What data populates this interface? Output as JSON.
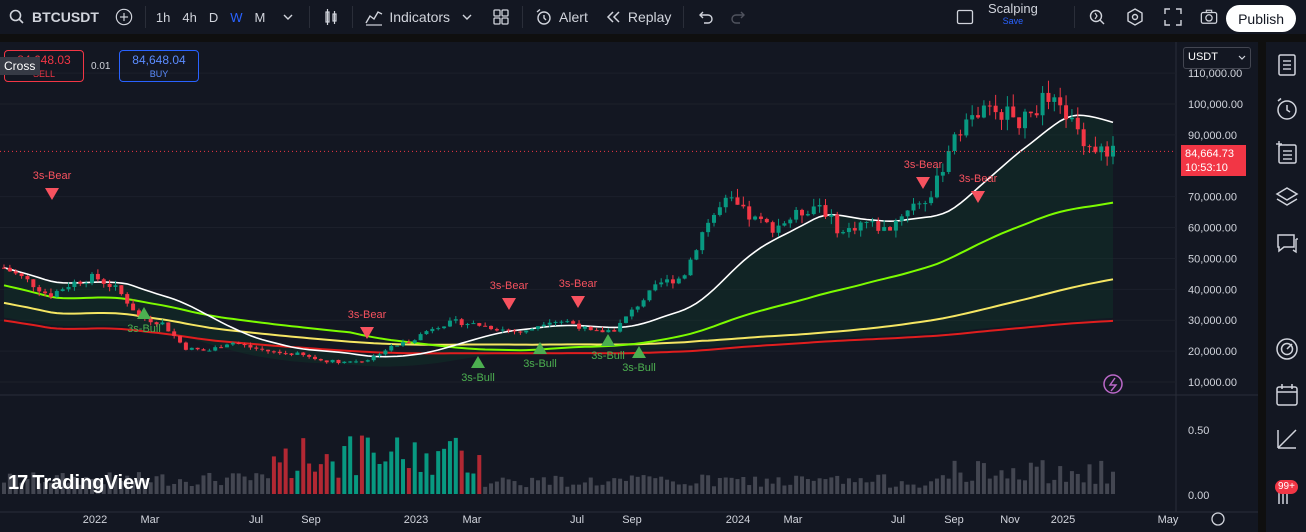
{
  "toolbar": {
    "symbol": "BTCUSDT",
    "timeframes": [
      "1h",
      "4h",
      "D",
      "W",
      "M"
    ],
    "active_timeframe": "W",
    "indicators_label": "Indicators",
    "alert_label": "Alert",
    "replay_label": "Replay",
    "layout_name": "Scalping",
    "layout_status": "Save",
    "publish_label": "Publish"
  },
  "trade_panel": {
    "sell_price": "84,648.03",
    "sell_label": "SELL",
    "buy_price": "84,648.04",
    "buy_label": "BUY",
    "spread": "0.01",
    "cross_label": "Cross"
  },
  "currency_select": "USDT",
  "last_price": "84,664.73",
  "countdown": "10:53:10",
  "logo_text": "TradingView",
  "notifications_badge": "99+",
  "colors": {
    "up": "#089981",
    "down": "#f23645",
    "ma_white": "#ffffff",
    "ma_green": "#7cfc00",
    "ma_yellow": "#f5e663",
    "ma_red": "#e01e1e",
    "accent": "#2962ff"
  },
  "chart_data": {
    "type": "candlestick",
    "price_ticks": [
      "110,000.00",
      "100,000.00",
      "90,000.00",
      "70,000.00",
      "60,000.00",
      "50,000.00",
      "40,000.00",
      "30,000.00",
      "20,000.00",
      "10,000.00"
    ],
    "volume_ticks": [
      "0.50",
      "0.00"
    ],
    "x_labels": [
      "2022",
      "Mar",
      "Jul",
      "Sep",
      "2023",
      "Mar",
      "Jul",
      "Sep",
      "2024",
      "Mar",
      "Jul",
      "Sep",
      "Nov",
      "2025",
      "May"
    ],
    "signals": [
      {
        "label": "3s-Bear",
        "type": "bear"
      },
      {
        "label": "3s-Bull",
        "type": "bull"
      },
      {
        "label": "3s-Bear",
        "type": "bear"
      },
      {
        "label": "3s-Bull",
        "type": "bull"
      },
      {
        "label": "3s-Bear",
        "type": "bear"
      },
      {
        "label": "3s-Bull",
        "type": "bull"
      },
      {
        "label": "3s-Bear",
        "type": "bear"
      },
      {
        "label": "3s-Bull",
        "type": "bull"
      },
      {
        "label": "3s-Bull",
        "type": "bull"
      },
      {
        "label": "3s-Bear",
        "type": "bear"
      },
      {
        "label": "3s-Bear",
        "type": "bear"
      }
    ],
    "series_close": [
      47000,
      43000,
      38000,
      42000,
      44000,
      40000,
      31000,
      29000,
      21000,
      20000,
      23000,
      21000,
      19500,
      19000,
      17000,
      16500,
      17000,
      21000,
      23500,
      28000,
      29500,
      28500,
      27000,
      26000,
      30000,
      29500,
      26000,
      27000,
      35000,
      42000,
      44000,
      61000,
      69000,
      63000,
      60000,
      64000,
      68000,
      58000,
      62000,
      59000,
      67000,
      70000,
      91000,
      97000,
      98000,
      94000,
      102000,
      96000,
      86000,
      84664
    ]
  }
}
